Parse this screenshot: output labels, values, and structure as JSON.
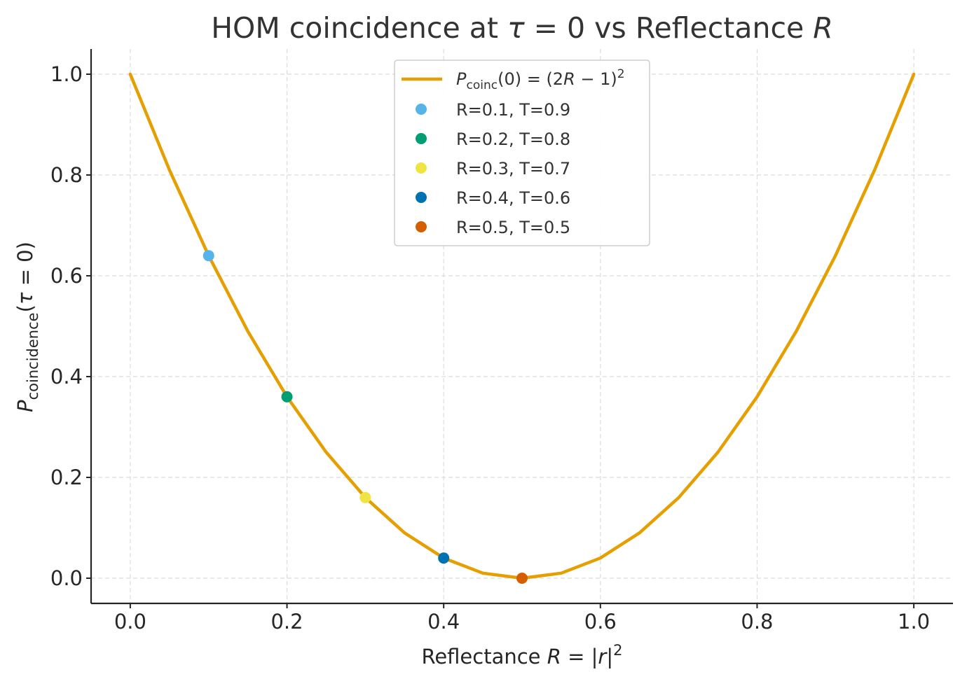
{
  "chart_data": {
    "type": "line",
    "title": "HOM coincidence at τ = 0 vs Reflectance R",
    "xlabel": "Reflectance R = |r|²",
    "ylabel": "Pcoincidence(τ = 0)",
    "xlim": [
      -0.05,
      1.05
    ],
    "ylim": [
      -0.05,
      1.05
    ],
    "xticks": [
      0.0,
      0.2,
      0.4,
      0.6,
      0.8,
      1.0
    ],
    "xtick_labels": [
      "0.0",
      "0.2",
      "0.4",
      "0.6",
      "0.8",
      "1.0"
    ],
    "yticks": [
      0.0,
      0.2,
      0.4,
      0.6,
      0.8,
      1.0
    ],
    "ytick_labels": [
      "0.0",
      "0.2",
      "0.4",
      "0.6",
      "0.8",
      "1.0"
    ],
    "grid": true,
    "legend_position": "top-center",
    "curve": {
      "name": "Pcoinc(0) = (2R − 1)²",
      "color": "#E69F00",
      "x": [
        0.0,
        0.05,
        0.1,
        0.15,
        0.2,
        0.25,
        0.3,
        0.35,
        0.4,
        0.45,
        0.5,
        0.55,
        0.6,
        0.65,
        0.7,
        0.75,
        0.8,
        0.85,
        0.9,
        0.95,
        1.0
      ],
      "y": [
        1.0,
        0.81,
        0.64,
        0.49,
        0.36,
        0.25,
        0.16,
        0.09,
        0.04,
        0.01,
        0.0,
        0.01,
        0.04,
        0.09,
        0.16,
        0.25,
        0.36,
        0.49,
        0.64,
        0.81,
        1.0
      ]
    },
    "points": [
      {
        "name": "R=0.1, T=0.9",
        "x": 0.1,
        "y": 0.64,
        "color": "#56B4E9"
      },
      {
        "name": "R=0.2, T=0.8",
        "x": 0.2,
        "y": 0.36,
        "color": "#009E73"
      },
      {
        "name": "R=0.3, T=0.7",
        "x": 0.3,
        "y": 0.16,
        "color": "#F0E442"
      },
      {
        "name": "R=0.4, T=0.6",
        "x": 0.4,
        "y": 0.04,
        "color": "#0072B2"
      },
      {
        "name": "R=0.5, T=0.5",
        "x": 0.5,
        "y": 0.0,
        "color": "#D55E00"
      }
    ]
  }
}
